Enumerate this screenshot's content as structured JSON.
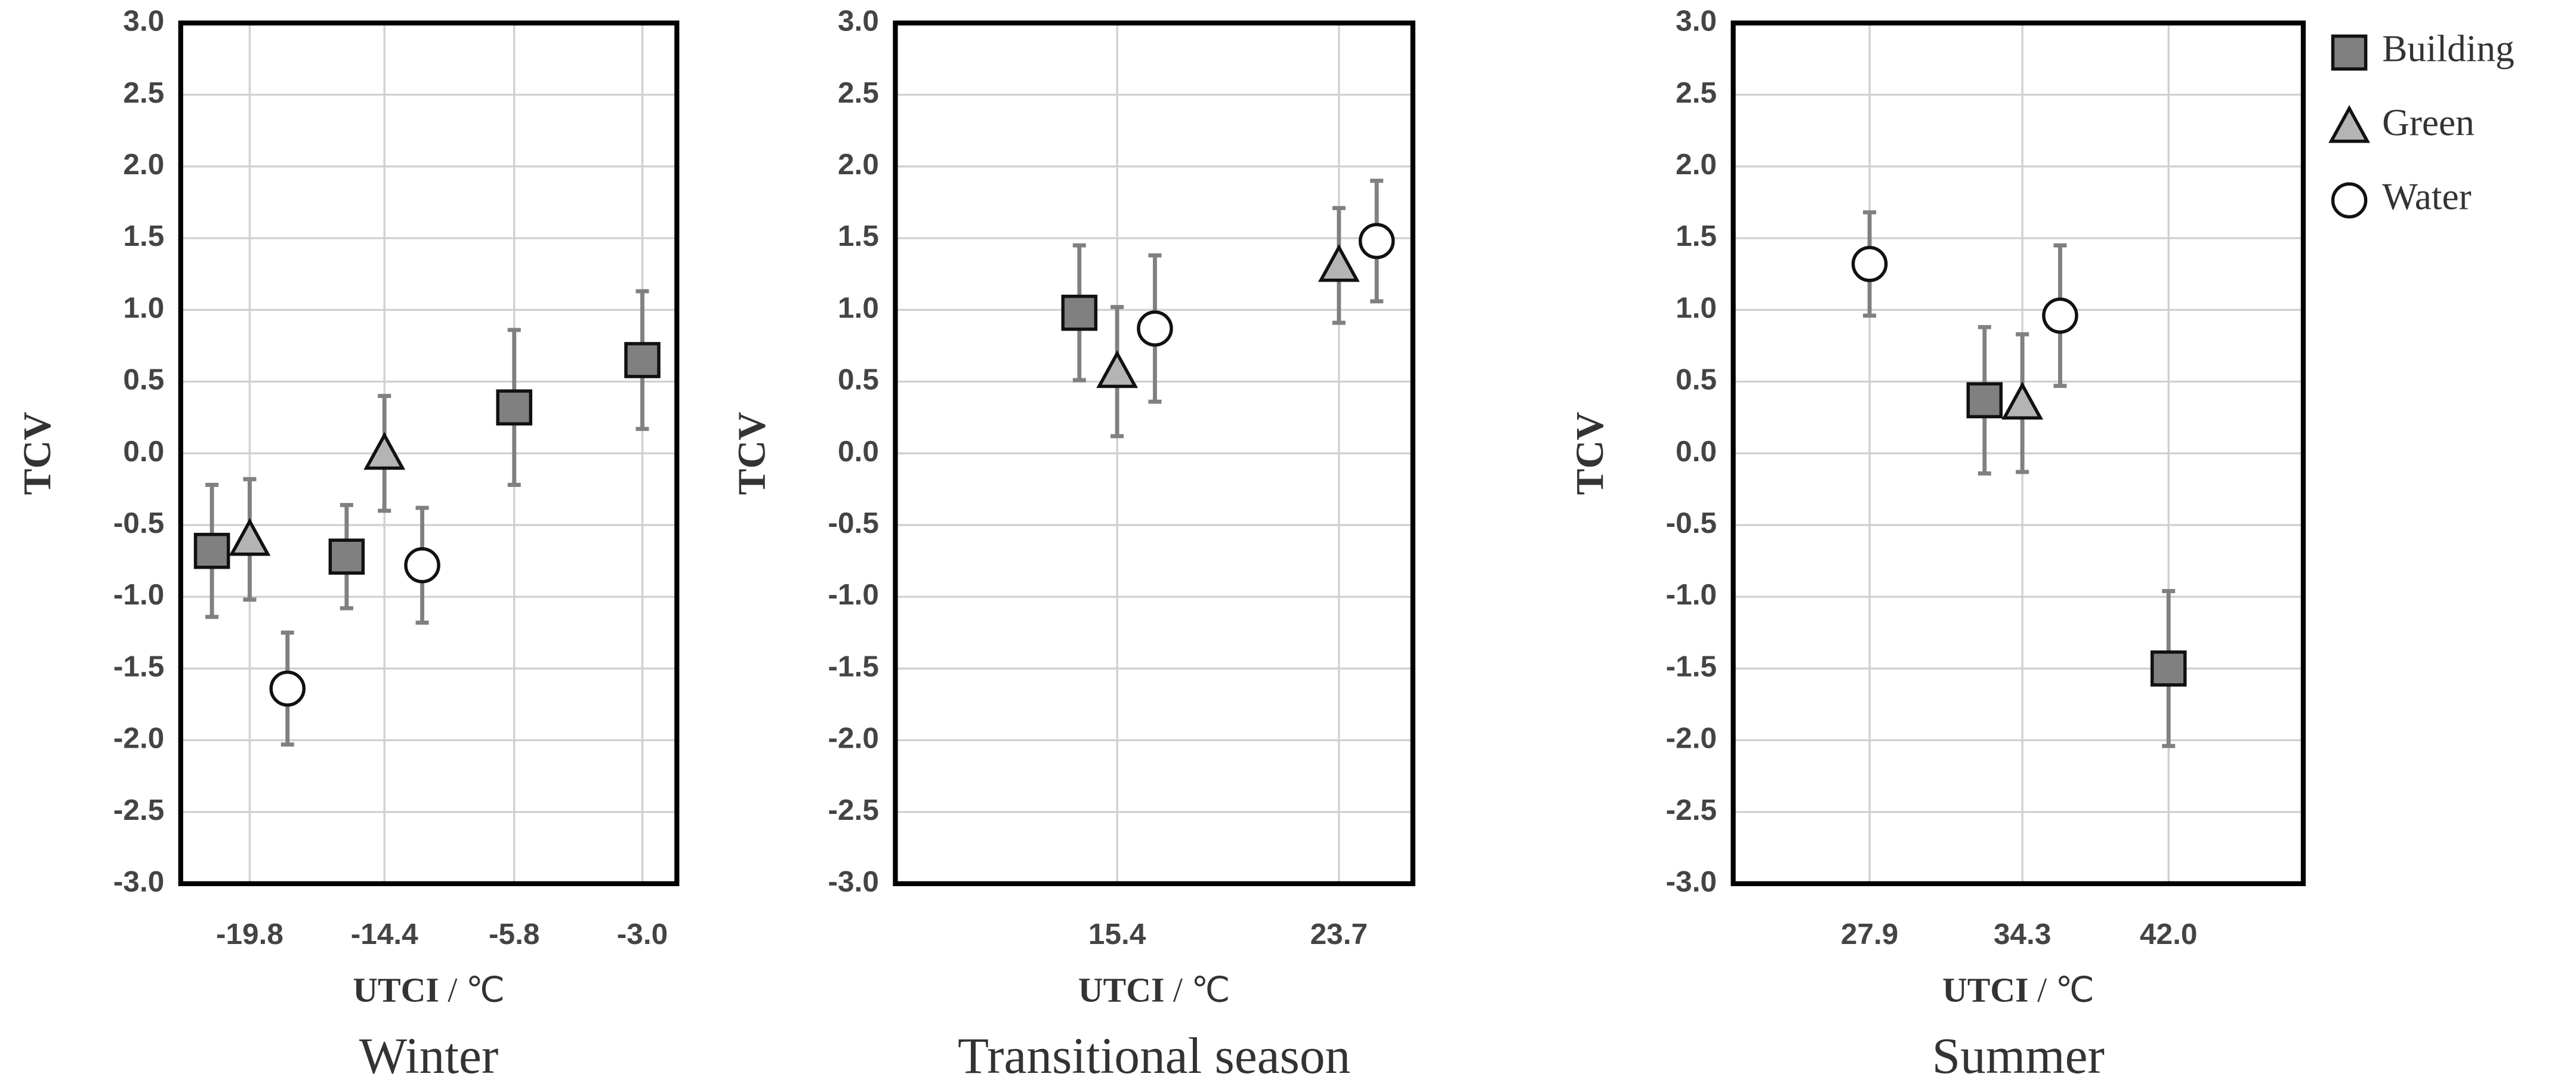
{
  "chart_data": [
    {
      "type": "scatter",
      "title": "Winter",
      "ylabel": "TCV",
      "xlabel": "UTCI / ℃",
      "categories": [
        "-19.8",
        "-14.4",
        "-5.8",
        "-3.0"
      ],
      "ylim": [
        -3,
        3
      ],
      "yticks": [
        {
          "value": -3,
          "label": "-3.0"
        },
        -2.5,
        {
          "value": -2,
          "label": "-2.0"
        },
        -1.5,
        {
          "value": -1,
          "label": "-1.0"
        },
        -0.5,
        {
          "value": 0,
          "label": "0.0"
        },
        0.5,
        {
          "value": 1,
          "label": "1.0"
        },
        1.5,
        {
          "value": 2,
          "label": "2.0"
        },
        2.5,
        {
          "value": 3,
          "label": "3.0"
        }
      ],
      "grid": true,
      "series": [
        {
          "name": "Building",
          "color": "#808080",
          "marker": "square",
          "values": [
            -0.68,
            -0.72,
            0.32,
            0.65
          ],
          "errors": [
            0.46,
            0.36,
            0.54,
            0.48
          ]
        },
        {
          "name": "Green",
          "color": "#b4b4b4",
          "marker": "triangle",
          "values": [
            -0.6,
            0.0,
            null,
            null
          ],
          "errors": [
            0.42,
            0.4,
            null,
            null
          ]
        },
        {
          "name": "Water",
          "color": "#ffffff",
          "marker": "circle",
          "values": [
            -1.64,
            -0.78,
            null,
            null
          ],
          "errors": [
            0.39,
            0.4,
            null,
            null
          ]
        }
      ]
    },
    {
      "type": "scatter",
      "title": "Transitional season",
      "ylabel": "TCV",
      "xlabel": "UTCI / ℃",
      "categories": [
        "15.4",
        "23.7"
      ],
      "ylim": [
        -3,
        3
      ],
      "yticks": [
        {
          "value": -3,
          "label": "-3.0"
        },
        -2.5,
        {
          "value": -2,
          "label": "-2.0"
        },
        -1.5,
        {
          "value": -1,
          "label": "-1.0"
        },
        -0.5,
        {
          "value": 0,
          "label": "0.0"
        },
        0.5,
        {
          "value": 1,
          "label": "1.0"
        },
        1.5,
        {
          "value": 2,
          "label": "2.0"
        },
        2.5,
        {
          "value": 3,
          "label": "3.0"
        }
      ],
      "grid": true,
      "series": [
        {
          "name": "Building",
          "color": "#808080",
          "marker": "square",
          "values": [
            0.98,
            null
          ],
          "errors": [
            0.47,
            null
          ]
        },
        {
          "name": "Green",
          "color": "#b4b4b4",
          "marker": "triangle",
          "values": [
            0.57,
            1.31
          ],
          "errors": [
            0.45,
            0.4
          ]
        },
        {
          "name": "Water",
          "color": "#ffffff",
          "marker": "circle",
          "values": [
            0.87,
            1.48
          ],
          "errors": [
            0.51,
            0.42
          ]
        }
      ]
    },
    {
      "type": "scatter",
      "title": "Summer",
      "ylabel": "TCV",
      "xlabel": "UTCI / ℃",
      "categories": [
        "27.9",
        "34.3",
        "42.0"
      ],
      "ylim": [
        -3,
        3
      ],
      "yticks": [
        {
          "value": -3,
          "label": "-3.0"
        },
        -2.5,
        {
          "value": -2,
          "label": "-2.0"
        },
        -1.5,
        {
          "value": -1,
          "label": "-1.0"
        },
        -0.5,
        {
          "value": 0,
          "label": "0.0"
        },
        0.5,
        {
          "value": 1,
          "label": "1.0"
        },
        1.5,
        {
          "value": 2,
          "label": "2.0"
        },
        2.5,
        {
          "value": 3,
          "label": "3.0"
        }
      ],
      "grid": true,
      "legend": "right",
      "series": [
        {
          "name": "Building",
          "color": "#808080",
          "marker": "square",
          "values": [
            null,
            0.37,
            -1.5
          ],
          "errors": [
            null,
            0.51,
            0.54
          ]
        },
        {
          "name": "Green",
          "color": "#b4b4b4",
          "marker": "triangle",
          "values": [
            null,
            0.35,
            null
          ],
          "errors": [
            null,
            0.48,
            null
          ]
        },
        {
          "name": "Water",
          "color": "#ffffff",
          "marker": "circle",
          "values": [
            1.32,
            0.96,
            null
          ],
          "errors": [
            0.36,
            0.49,
            null
          ]
        }
      ]
    }
  ]
}
